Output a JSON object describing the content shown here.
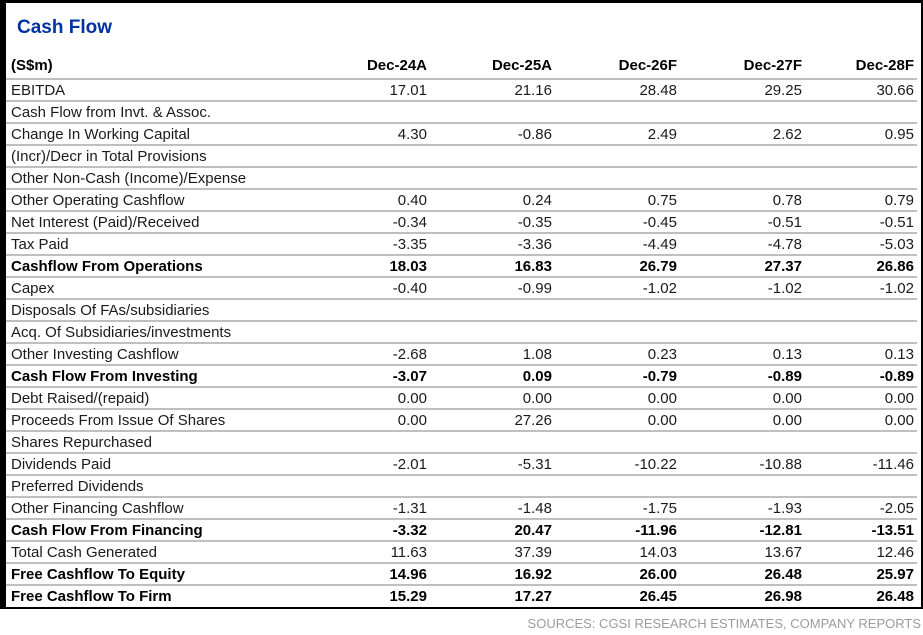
{
  "panel": {
    "title": "Cash Flow",
    "unit_header": "(S$m)",
    "columns": [
      "Dec-24A",
      "Dec-25A",
      "Dec-26F",
      "Dec-27F",
      "Dec-28F"
    ],
    "rows": [
      {
        "label": "EBITDA",
        "bold": false,
        "values": [
          "17.01",
          "21.16",
          "28.48",
          "29.25",
          "30.66"
        ]
      },
      {
        "label": "Cash Flow from Invt. & Assoc.",
        "bold": false,
        "values": [
          "",
          "",
          "",
          "",
          ""
        ]
      },
      {
        "label": "Change In Working Capital",
        "bold": false,
        "values": [
          "4.30",
          "-0.86",
          "2.49",
          "2.62",
          "0.95"
        ]
      },
      {
        "label": "(Incr)/Decr in Total Provisions",
        "bold": false,
        "values": [
          "",
          "",
          "",
          "",
          ""
        ]
      },
      {
        "label": "Other Non-Cash (Income)/Expense",
        "bold": false,
        "values": [
          "",
          "",
          "",
          "",
          ""
        ]
      },
      {
        "label": "Other Operating Cashflow",
        "bold": false,
        "values": [
          "0.40",
          "0.24",
          "0.75",
          "0.78",
          "0.79"
        ]
      },
      {
        "label": "Net Interest (Paid)/Received",
        "bold": false,
        "values": [
          "-0.34",
          "-0.35",
          "-0.45",
          "-0.51",
          "-0.51"
        ]
      },
      {
        "label": "Tax Paid",
        "bold": false,
        "values": [
          "-3.35",
          "-3.36",
          "-4.49",
          "-4.78",
          "-5.03"
        ]
      },
      {
        "label": "Cashflow From Operations",
        "bold": true,
        "values": [
          "18.03",
          "16.83",
          "26.79",
          "27.37",
          "26.86"
        ]
      },
      {
        "label": "Capex",
        "bold": false,
        "values": [
          "-0.40",
          "-0.99",
          "-1.02",
          "-1.02",
          "-1.02"
        ]
      },
      {
        "label": "Disposals Of FAs/subsidiaries",
        "bold": false,
        "values": [
          "",
          "",
          "",
          "",
          ""
        ]
      },
      {
        "label": "Acq. Of Subsidiaries/investments",
        "bold": false,
        "values": [
          "",
          "",
          "",
          "",
          ""
        ]
      },
      {
        "label": "Other Investing Cashflow",
        "bold": false,
        "values": [
          "-2.68",
          "1.08",
          "0.23",
          "0.13",
          "0.13"
        ]
      },
      {
        "label": "Cash Flow From Investing",
        "bold": true,
        "values": [
          "-3.07",
          "0.09",
          "-0.79",
          "-0.89",
          "-0.89"
        ]
      },
      {
        "label": "Debt Raised/(repaid)",
        "bold": false,
        "values": [
          "0.00",
          "0.00",
          "0.00",
          "0.00",
          "0.00"
        ]
      },
      {
        "label": "Proceeds From Issue Of Shares",
        "bold": false,
        "values": [
          "0.00",
          "27.26",
          "0.00",
          "0.00",
          "0.00"
        ]
      },
      {
        "label": "Shares Repurchased",
        "bold": false,
        "values": [
          "",
          "",
          "",
          "",
          ""
        ]
      },
      {
        "label": "Dividends Paid",
        "bold": false,
        "values": [
          "-2.01",
          "-5.31",
          "-10.22",
          "-10.88",
          "-11.46"
        ]
      },
      {
        "label": "Preferred Dividends",
        "bold": false,
        "values": [
          "",
          "",
          "",
          "",
          ""
        ]
      },
      {
        "label": "Other Financing Cashflow",
        "bold": false,
        "values": [
          "-1.31",
          "-1.48",
          "-1.75",
          "-1.93",
          "-2.05"
        ]
      },
      {
        "label": "Cash Flow From Financing",
        "bold": true,
        "values": [
          "-3.32",
          "20.47",
          "-11.96",
          "-12.81",
          "-13.51"
        ]
      },
      {
        "label": "Total Cash Generated",
        "bold": false,
        "values": [
          "11.63",
          "37.39",
          "14.03",
          "13.67",
          "12.46"
        ]
      },
      {
        "label": "Free Cashflow To Equity",
        "bold": true,
        "values": [
          "14.96",
          "16.92",
          "26.00",
          "26.48",
          "25.97"
        ]
      },
      {
        "label": "Free Cashflow To Firm",
        "bold": true,
        "values": [
          "15.29",
          "17.27",
          "26.45",
          "26.98",
          "26.48"
        ]
      }
    ],
    "footer": "SOURCES: CGSI RESEARCH ESTIMATES, COMPANY REPORTS"
  },
  "colors": {
    "title_blue": "#0033A0",
    "row_line": "#BFBFBF",
    "border_black": "#000000",
    "footer_gray": "#9B9B9B"
  }
}
